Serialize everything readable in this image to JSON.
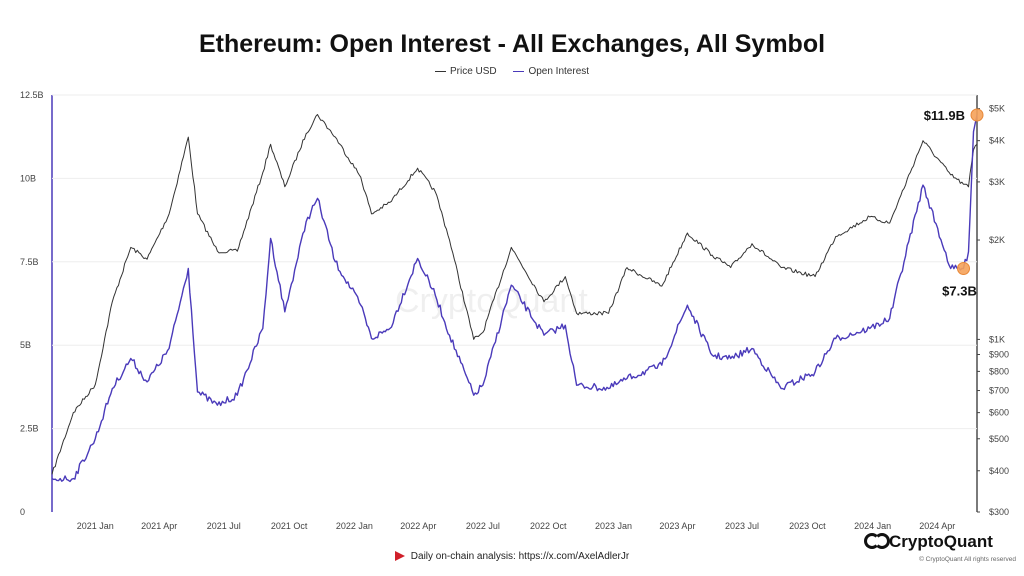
{
  "chart_data": {
    "type": "line",
    "title": "Ethereum: Open Interest - All Exchanges, All Symbol",
    "legend": [
      "Price USD",
      "Open Interest"
    ],
    "legend_placement": "top-center",
    "grid": false,
    "watermark": "CryptoQuant",
    "x_range": [
      "2020-11-01",
      "2024-05-27"
    ],
    "x_ticks": [
      "2021 Jan",
      "2021 Apr",
      "2021 Jul",
      "2021 Oct",
      "2022 Jan",
      "2022 Apr",
      "2022 Jul",
      "2022 Oct",
      "2023 Jan",
      "2023 Apr",
      "2023 Jul",
      "2023 Oct",
      "2024 Jan",
      "2024 Apr"
    ],
    "x_tick_dates": [
      "2021-01-01",
      "2021-04-01",
      "2021-07-01",
      "2021-10-01",
      "2022-01-01",
      "2022-04-01",
      "2022-07-01",
      "2022-10-01",
      "2023-01-01",
      "2023-04-01",
      "2023-07-01",
      "2023-10-01",
      "2024-01-01",
      "2024-04-01"
    ],
    "left_axis": {
      "series": "Open Interest",
      "ylim": [
        0,
        12500000000
      ],
      "ticks": [
        0,
        2500000000,
        5000000000,
        7500000000,
        10000000000,
        12500000000
      ],
      "tick_labels": [
        "0",
        "2.5B",
        "5B",
        "7.5B",
        "10B",
        "12.5B"
      ]
    },
    "right_axis": {
      "series": "Price USD",
      "scale": "log",
      "ylim": [
        300,
        5500
      ],
      "ticks": [
        300,
        400,
        500,
        600,
        700,
        800,
        900,
        1000,
        2000,
        3000,
        4000,
        5000
      ],
      "tick_labels": [
        "$300",
        "$400",
        "$500",
        "$600",
        "$700",
        "$800",
        "$900",
        "$1K",
        "$2K",
        "$3K",
        "$4K",
        "$5K"
      ]
    },
    "series": [
      {
        "name": "Price USD",
        "axis": "right",
        "color": "#333333",
        "points": [
          [
            "2020-11-01",
            390
          ],
          [
            "2020-12-01",
            600
          ],
          [
            "2021-01-01",
            730
          ],
          [
            "2021-01-25",
            1300
          ],
          [
            "2021-02-20",
            1900
          ],
          [
            "2021-03-15",
            1750
          ],
          [
            "2021-04-15",
            2400
          ],
          [
            "2021-05-12",
            4100
          ],
          [
            "2021-05-25",
            2400
          ],
          [
            "2021-06-22",
            1850
          ],
          [
            "2021-07-20",
            1850
          ],
          [
            "2021-08-25",
            3200
          ],
          [
            "2021-09-05",
            3900
          ],
          [
            "2021-09-25",
            2900
          ],
          [
            "2021-10-25",
            4200
          ],
          [
            "2021-11-10",
            4800
          ],
          [
            "2021-12-05",
            4100
          ],
          [
            "2022-01-10",
            3100
          ],
          [
            "2022-01-25",
            2400
          ],
          [
            "2022-02-20",
            2600
          ],
          [
            "2022-03-31",
            3300
          ],
          [
            "2022-04-25",
            2800
          ],
          [
            "2022-05-15",
            2000
          ],
          [
            "2022-06-18",
            1000
          ],
          [
            "2022-07-01",
            1050
          ],
          [
            "2022-08-10",
            1900
          ],
          [
            "2022-09-25",
            1300
          ],
          [
            "2022-10-25",
            1550
          ],
          [
            "2022-11-10",
            1200
          ],
          [
            "2022-12-25",
            1200
          ],
          [
            "2023-01-20",
            1650
          ],
          [
            "2023-03-10",
            1450
          ],
          [
            "2023-04-15",
            2100
          ],
          [
            "2023-05-20",
            1800
          ],
          [
            "2023-06-15",
            1650
          ],
          [
            "2023-07-15",
            1950
          ],
          [
            "2023-08-25",
            1650
          ],
          [
            "2023-10-12",
            1550
          ],
          [
            "2023-11-10",
            2050
          ],
          [
            "2023-12-28",
            2350
          ],
          [
            "2024-01-25",
            2250
          ],
          [
            "2024-03-12",
            4000
          ],
          [
            "2024-04-20",
            3150
          ],
          [
            "2024-05-08",
            2950
          ],
          [
            "2024-05-15",
            2900
          ],
          [
            "2024-05-22",
            3750
          ],
          [
            "2024-05-27",
            3900
          ]
        ]
      },
      {
        "name": "Open Interest",
        "axis": "left",
        "color": "#4a3aba",
        "points": [
          [
            "2020-11-01",
            1000000000
          ],
          [
            "2020-12-01",
            1000000000
          ],
          [
            "2021-01-01",
            2200000000
          ],
          [
            "2021-01-25",
            3700000000
          ],
          [
            "2021-02-20",
            4600000000
          ],
          [
            "2021-03-15",
            3900000000
          ],
          [
            "2021-04-15",
            4900000000
          ],
          [
            "2021-05-12",
            7300000000
          ],
          [
            "2021-05-25",
            3600000000
          ],
          [
            "2021-06-22",
            3200000000
          ],
          [
            "2021-07-20",
            3500000000
          ],
          [
            "2021-08-25",
            5500000000
          ],
          [
            "2021-09-05",
            8200000000
          ],
          [
            "2021-09-25",
            6000000000
          ],
          [
            "2021-10-25",
            8700000000
          ],
          [
            "2021-11-10",
            9400000000
          ],
          [
            "2021-12-05",
            7500000000
          ],
          [
            "2022-01-10",
            6200000000
          ],
          [
            "2022-01-25",
            5200000000
          ],
          [
            "2022-02-20",
            5500000000
          ],
          [
            "2022-03-31",
            7600000000
          ],
          [
            "2022-04-25",
            6500000000
          ],
          [
            "2022-05-15",
            5300000000
          ],
          [
            "2022-06-18",
            3500000000
          ],
          [
            "2022-07-01",
            3800000000
          ],
          [
            "2022-08-10",
            6800000000
          ],
          [
            "2022-09-25",
            5300000000
          ],
          [
            "2022-10-25",
            5600000000
          ],
          [
            "2022-11-10",
            3800000000
          ],
          [
            "2022-12-25",
            3700000000
          ],
          [
            "2023-01-20",
            4000000000
          ],
          [
            "2023-03-10",
            4400000000
          ],
          [
            "2023-04-15",
            6200000000
          ],
          [
            "2023-05-20",
            4700000000
          ],
          [
            "2023-06-15",
            4600000000
          ],
          [
            "2023-07-15",
            4900000000
          ],
          [
            "2023-08-25",
            3700000000
          ],
          [
            "2023-10-12",
            4200000000
          ],
          [
            "2023-11-10",
            5200000000
          ],
          [
            "2023-12-28",
            5500000000
          ],
          [
            "2024-01-25",
            5800000000
          ],
          [
            "2024-03-12",
            9800000000
          ],
          [
            "2024-04-20",
            7300000000
          ],
          [
            "2024-05-08",
            7300000000
          ],
          [
            "2024-05-15",
            7800000000
          ],
          [
            "2024-05-22",
            11400000000
          ],
          [
            "2024-05-27",
            11900000000
          ]
        ]
      }
    ],
    "annotations": [
      {
        "label": "$11.9B",
        "date": "2024-05-27",
        "value": 11900000000,
        "color": "#f5a25a"
      },
      {
        "label": "$7.3B",
        "date": "2024-05-08",
        "value": 7300000000,
        "color": "#f5a25a"
      }
    ],
    "footer": "Daily on-chain analysis: https://x.com/AxelAdlerJr",
    "brand": "CryptoQuant",
    "copyright": "© CryptoQuant All rights reserved"
  }
}
